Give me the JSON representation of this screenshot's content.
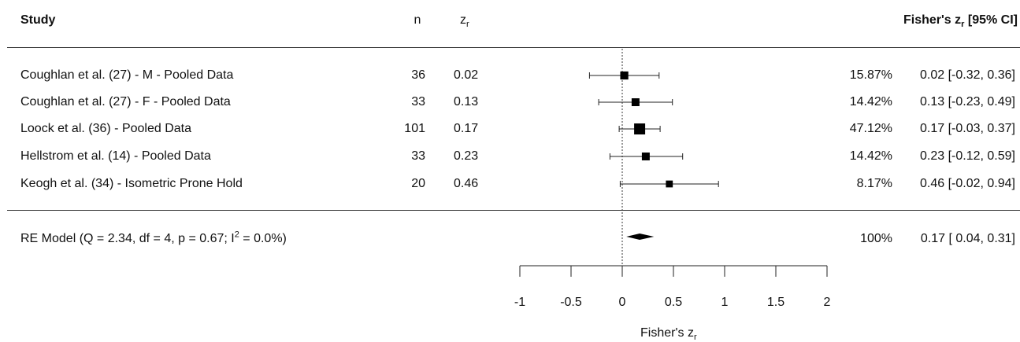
{
  "header": {
    "study": "Study",
    "n": "n",
    "zr_main": "z",
    "zr_sub": "r",
    "ci_label_main": "Fisher's z",
    "ci_label_sub": "r",
    "ci_label_rest": " [95% CI]"
  },
  "chart_data": {
    "type": "forest",
    "xlabel_main": "Fisher's z",
    "xlabel_sub": "r",
    "xlim": [
      -1,
      2
    ],
    "xticks": [
      "-1",
      "-0.5",
      "0",
      "0.5",
      "1",
      "1.5",
      "2"
    ],
    "xtick_values": [
      -1,
      -0.5,
      0,
      0.5,
      1,
      1.5,
      2
    ],
    "reference_line": 0,
    "studies": [
      {
        "label": "Coughlan et al. (27) - M - Pooled Data",
        "n": "36",
        "zr": "0.02",
        "weight": "15.87%",
        "ci_text": "0.02 [-0.32, 0.36]",
        "est": 0.02,
        "lo": -0.32,
        "hi": 0.36,
        "w": 15.87
      },
      {
        "label": "Coughlan et al. (27) - F - Pooled Data",
        "n": "33",
        "zr": "0.13",
        "weight": "14.42%",
        "ci_text": "0.13 [-0.23, 0.49]",
        "est": 0.13,
        "lo": -0.23,
        "hi": 0.49,
        "w": 14.42
      },
      {
        "label": "Loock et al. (36) - Pooled Data",
        "n": "101",
        "zr": "0.17",
        "weight": "47.12%",
        "ci_text": "0.17 [-0.03, 0.37]",
        "est": 0.17,
        "lo": -0.03,
        "hi": 0.37,
        "w": 47.12
      },
      {
        "label": "Hellstrom et al. (14) - Pooled Data",
        "n": "33",
        "zr": "0.23",
        "weight": "14.42%",
        "ci_text": "0.23 [-0.12, 0.59]",
        "est": 0.23,
        "lo": -0.12,
        "hi": 0.59,
        "w": 14.42
      },
      {
        "label": "Keogh et al. (34) - Isometric Prone Hold",
        "n": "20",
        "zr": "0.46",
        "weight": "8.17%",
        "ci_text": "0.46 [-0.02, 0.94]",
        "est": 0.46,
        "lo": -0.02,
        "hi": 0.94,
        "w": 8.17
      }
    ],
    "summary": {
      "label_pre": "RE Model (Q = 2.34, df = 4, p = 0.67; I",
      "label_sup": "2",
      "label_post": " = 0.0%)",
      "weight": "100%",
      "ci_text": "0.17 [ 0.04, 0.31]",
      "est": 0.17,
      "lo": 0.04,
      "hi": 0.31
    }
  }
}
